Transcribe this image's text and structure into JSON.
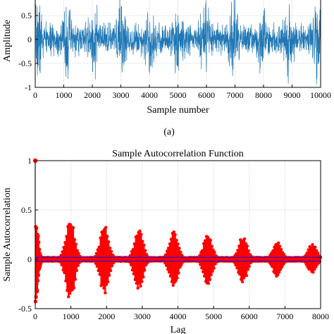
{
  "panel_a_caption": "(a)",
  "chart_data": [
    {
      "type": "line",
      "title": "",
      "xlabel": "Sample number",
      "ylabel": "Amplitude",
      "xlim": [
        0,
        10000
      ],
      "ylim": [
        -1,
        1
      ],
      "xticks": [
        "0",
        "1000",
        "2000",
        "3000",
        "4000",
        "5000",
        "6000",
        "7000",
        "8000",
        "9000",
        "10000"
      ],
      "yticks": [
        "-1",
        "-0.5",
        "0",
        "0.5"
      ],
      "grid": true,
      "series_color": "#1f77b4",
      "burst_centers": [
        120,
        1120,
        2060,
        3020,
        4020,
        5000,
        5960,
        6940,
        7940,
        8900,
        9840
      ],
      "envelope_baseline": 0.35,
      "envelope_peak": 0.95
    },
    {
      "type": "scatter",
      "title": "Sample Autocorrelation Function",
      "xlabel": "Lag",
      "ylabel": "Sample Autocorrelation",
      "xlim": [
        0,
        8000
      ],
      "ylim": [
        -0.5,
        1
      ],
      "xticks": [
        "0",
        "1000",
        "2000",
        "3000",
        "4000",
        "5000",
        "6000",
        "7000",
        "8000"
      ],
      "yticks": [
        "-0.5",
        "0",
        "0.5",
        "1"
      ],
      "grid": true,
      "marker_color": "#ff0000",
      "bound_color": "#0000ff",
      "lag0_value": 1,
      "peaks": [
        {
          "lag": 0,
          "value": 0.47
        },
        {
          "lag": 980,
          "value": 0.43
        },
        {
          "lag": 1940,
          "value": 0.35
        },
        {
          "lag": 2900,
          "value": 0.31
        },
        {
          "lag": 3880,
          "value": 0.29
        },
        {
          "lag": 4840,
          "value": 0.26
        },
        {
          "lag": 5820,
          "value": 0.24
        },
        {
          "lag": 6780,
          "value": 0.18
        },
        {
          "lag": 7760,
          "value": 0.16
        }
      ],
      "troughs": [
        {
          "lag": 0,
          "value": -0.48
        },
        {
          "lag": 980,
          "value": -0.43
        },
        {
          "lag": 1940,
          "value": -0.36
        },
        {
          "lag": 2900,
          "value": -0.32
        },
        {
          "lag": 3880,
          "value": -0.29
        },
        {
          "lag": 4840,
          "value": -0.26
        },
        {
          "lag": 5820,
          "value": -0.24
        },
        {
          "lag": 6780,
          "value": -0.18
        },
        {
          "lag": 7760,
          "value": -0.14
        }
      ],
      "confidence_bound": 0.02
    }
  ]
}
